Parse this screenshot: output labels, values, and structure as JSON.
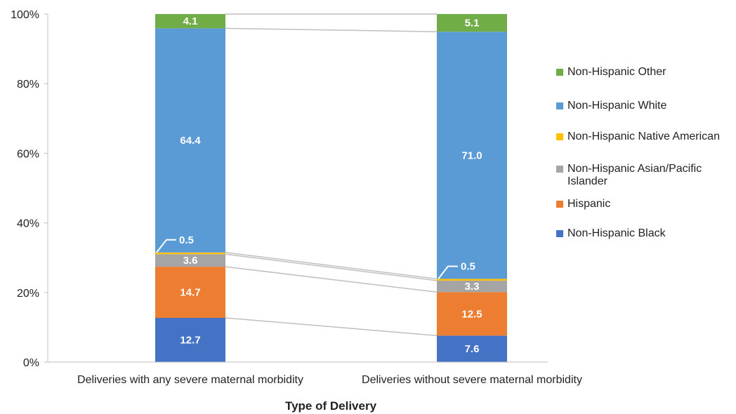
{
  "chart_data": {
    "type": "bar",
    "stacked": true,
    "categories": [
      "Deliveries with any severe maternal morbidity",
      "Deliveries without severe maternal morbidity"
    ],
    "series": [
      {
        "name": "Non-Hispanic Black",
        "color": "#4472C4",
        "values": [
          12.7,
          7.6
        ]
      },
      {
        "name": "Hispanic",
        "color": "#ED7D31",
        "values": [
          14.7,
          12.5
        ]
      },
      {
        "name": "Non-Hispanic Asian/Pacific Islander",
        "color": "#A5A5A5",
        "values": [
          3.6,
          3.3
        ]
      },
      {
        "name": "Non-Hispanic Native American",
        "color": "#FFC000",
        "values": [
          0.5,
          0.5
        ]
      },
      {
        "name": "Non-Hispanic White",
        "color": "#5B9BD5",
        "values": [
          64.4,
          71.0
        ]
      },
      {
        "name": "Non-Hispanic Other",
        "color": "#70AD47",
        "values": [
          4.1,
          5.1
        ]
      }
    ],
    "data_labels": [
      [
        "12.7",
        "7.6"
      ],
      [
        "14.7",
        "12.5"
      ],
      [
        "3.6",
        "3.3"
      ],
      [
        "0.5",
        "0.5"
      ],
      [
        "64.4",
        "71.0"
      ],
      [
        "4.1",
        "5.1"
      ]
    ],
    "xlabel": "Type of Delivery",
    "ylabel": "",
    "ylim": [
      0,
      100
    ],
    "yticks": [
      "0%",
      "20%",
      "40%",
      "60%",
      "80%",
      "100%"
    ],
    "legend_position": "right",
    "grid": false
  }
}
